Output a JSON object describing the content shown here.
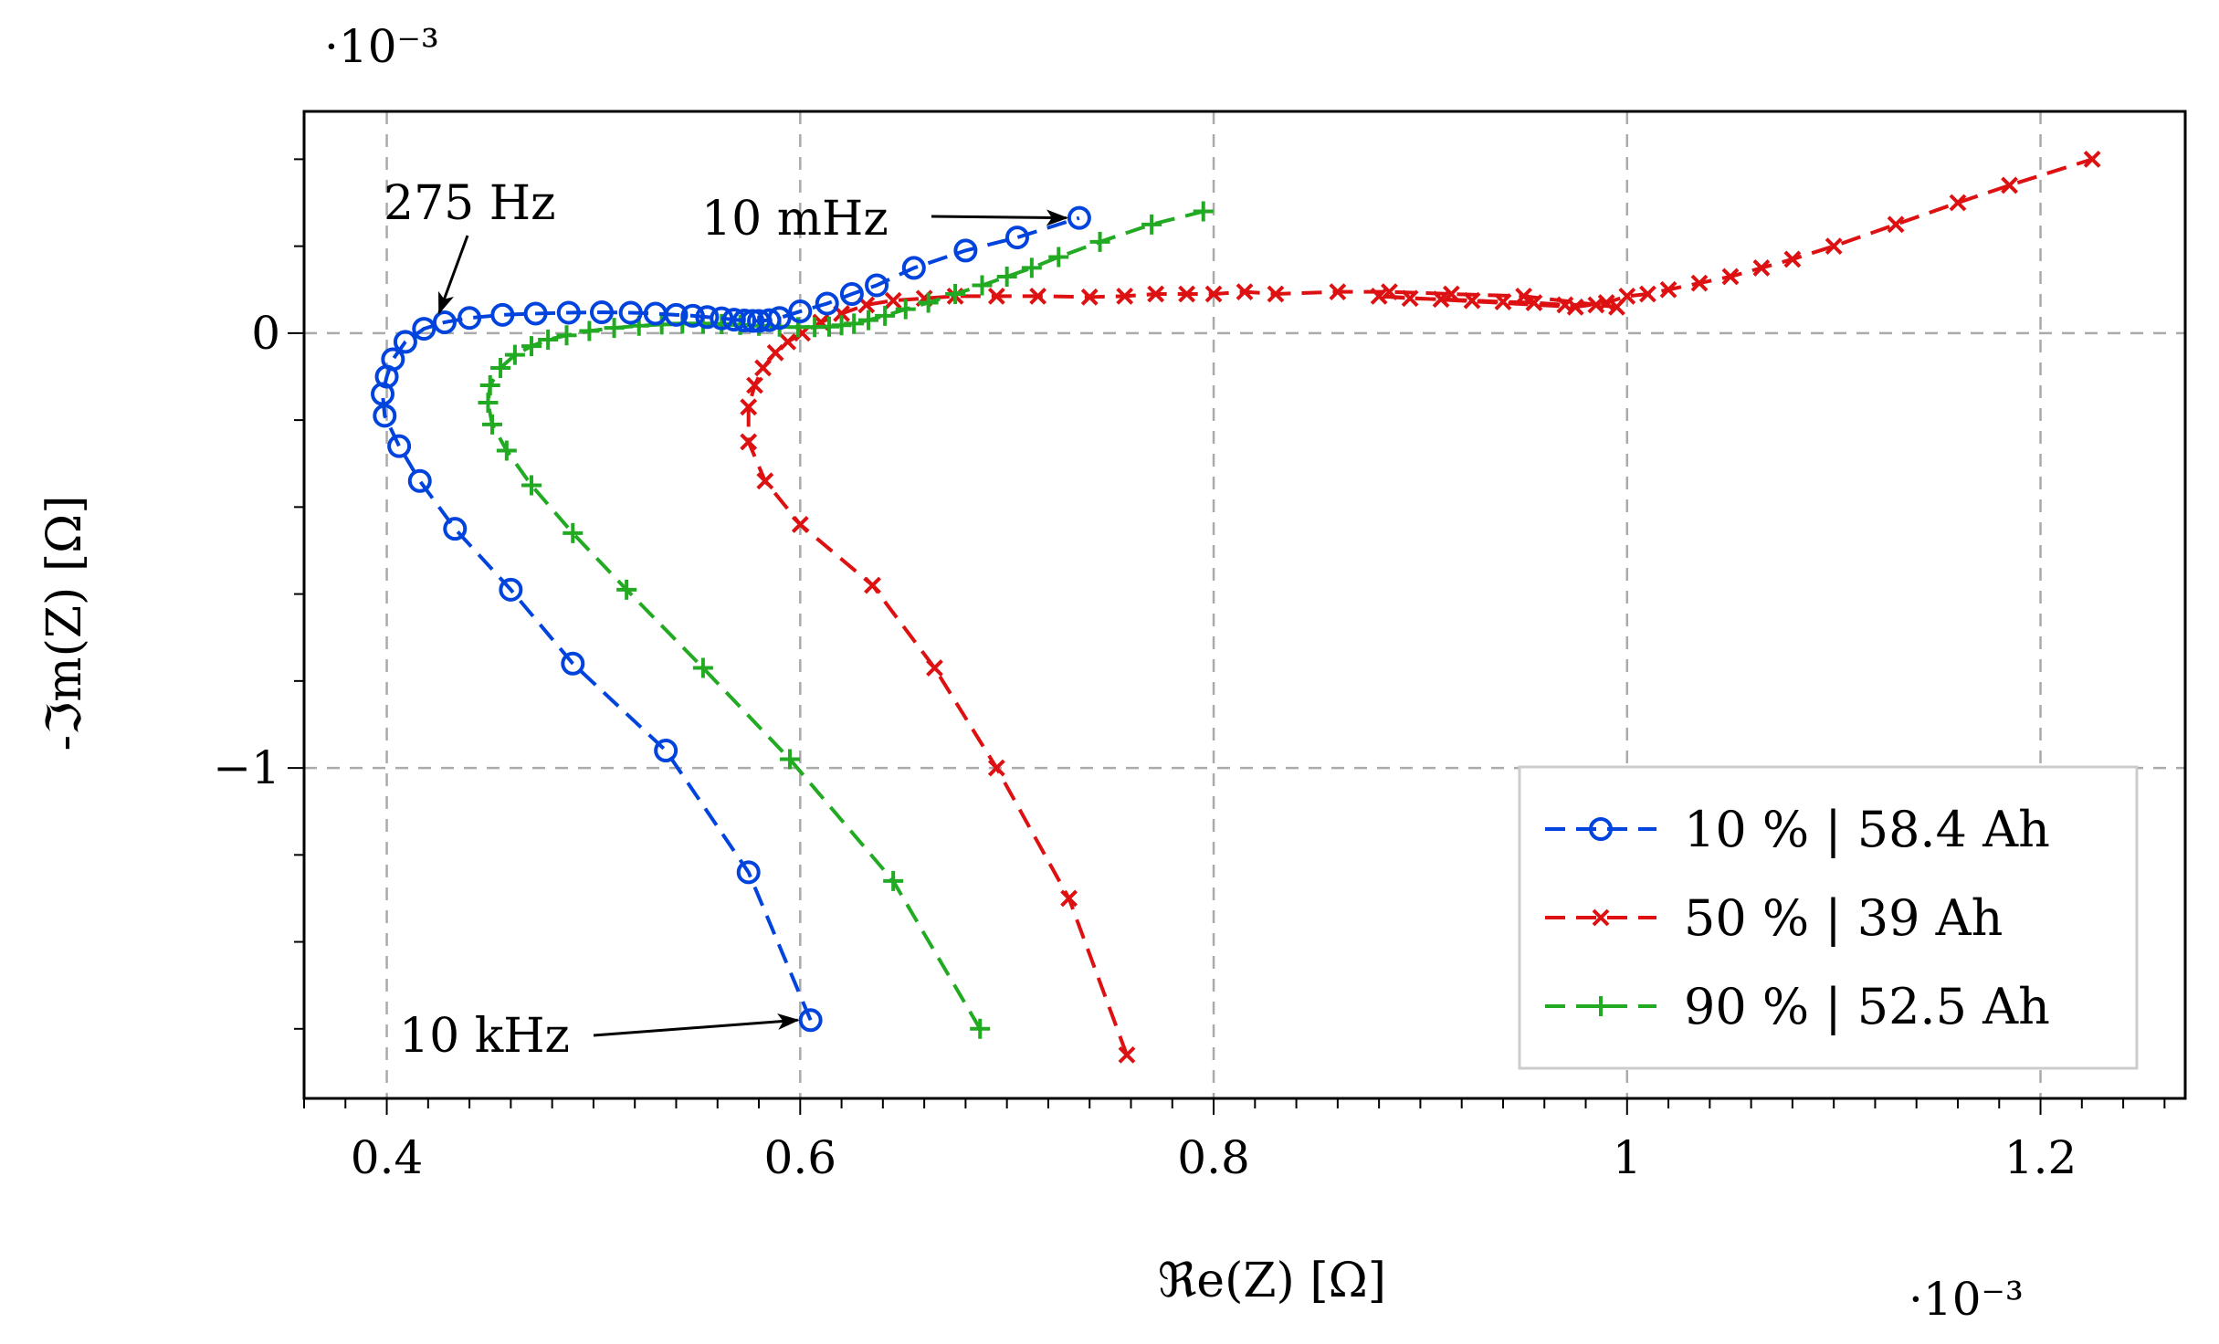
{
  "chart_data": {
    "type": "scatter",
    "title": "",
    "xlabel": "ℜe(Z)  [Ω]",
    "ylabel": "-ℑm(Z)  [Ω]",
    "x_multiplier": "·10⁻³",
    "y_multiplier": "·10⁻³",
    "xlim": [
      0.36,
      1.27
    ],
    "ylim": [
      -1.76,
      0.51
    ],
    "xticks": [
      0.4,
      0.6,
      0.8,
      1.0,
      1.2
    ],
    "xtick_labels": [
      "0.4",
      "0.6",
      "0.8",
      "1",
      "1.2"
    ],
    "yticks": [
      0,
      -1
    ],
    "ytick_labels": [
      "0",
      "−1"
    ],
    "grid": true,
    "legend_position": "bottom-right",
    "annotations": [
      {
        "text": "275 Hz",
        "at": [
          0.428,
          0.03
        ]
      },
      {
        "text": "10 mHz",
        "at": [
          0.735,
          0.265
        ]
      },
      {
        "text": "10 kHz",
        "at": [
          0.605,
          -1.58
        ]
      }
    ],
    "series": [
      {
        "name": "10 % | 58.4 Ah",
        "color": "#0044dd",
        "marker": "circle",
        "x": [
          0.605,
          0.575,
          0.535,
          0.49,
          0.46,
          0.433,
          0.416,
          0.406,
          0.399,
          0.398,
          0.4,
          0.403,
          0.409,
          0.418,
          0.428,
          0.44,
          0.456,
          0.472,
          0.488,
          0.504,
          0.518,
          0.53,
          0.54,
          0.548,
          0.555,
          0.562,
          0.568,
          0.573,
          0.577,
          0.58,
          0.585,
          0.59,
          0.6,
          0.613,
          0.625,
          0.637,
          0.655,
          0.68,
          0.705,
          0.735
        ],
        "y": [
          -1.58,
          -1.24,
          -0.96,
          -0.76,
          -0.59,
          -0.45,
          -0.34,
          -0.26,
          -0.19,
          -0.14,
          -0.1,
          -0.06,
          -0.02,
          0.01,
          0.025,
          0.035,
          0.042,
          0.045,
          0.047,
          0.048,
          0.047,
          0.045,
          0.042,
          0.04,
          0.037,
          0.034,
          0.031,
          0.029,
          0.028,
          0.028,
          0.03,
          0.035,
          0.05,
          0.068,
          0.09,
          0.11,
          0.15,
          0.19,
          0.22,
          0.265
        ]
      },
      {
        "name": "50 % | 39 Ah",
        "color": "#dd1111",
        "marker": "x",
        "x": [
          0.758,
          0.73,
          0.695,
          0.665,
          0.635,
          0.6,
          0.583,
          0.575,
          0.575,
          0.578,
          0.582,
          0.588,
          0.594,
          0.601,
          0.61,
          0.62,
          0.632,
          0.645,
          0.66,
          0.675,
          0.695,
          0.715,
          0.74,
          0.757,
          0.772,
          0.787,
          0.8,
          0.815,
          0.83,
          0.86,
          0.885,
          0.915,
          0.95,
          0.995,
          0.985,
          0.97,
          0.955,
          0.94,
          0.925,
          0.91,
          0.895,
          0.88,
          0.975,
          0.99,
          1.0,
          1.01,
          1.02,
          1.035,
          1.05,
          1.065,
          1.08,
          1.1,
          1.13,
          1.16,
          1.185,
          1.225
        ],
        "y": [
          -1.66,
          -1.3,
          -1.0,
          -0.77,
          -0.58,
          -0.44,
          -0.34,
          -0.25,
          -0.17,
          -0.12,
          -0.08,
          -0.045,
          -0.02,
          0.0,
          0.025,
          0.045,
          0.065,
          0.075,
          0.08,
          0.085,
          0.085,
          0.085,
          0.083,
          0.085,
          0.09,
          0.09,
          0.09,
          0.095,
          0.09,
          0.095,
          0.095,
          0.09,
          0.085,
          0.06,
          0.065,
          0.065,
          0.07,
          0.072,
          0.075,
          0.078,
          0.08,
          0.085,
          0.06,
          0.07,
          0.085,
          0.09,
          0.1,
          0.115,
          0.13,
          0.15,
          0.17,
          0.2,
          0.25,
          0.3,
          0.34,
          0.4
        ]
      },
      {
        "name": "90 % | 52.5 Ah",
        "color": "#22aa22",
        "marker": "plus",
        "x": [
          0.687,
          0.645,
          0.595,
          0.553,
          0.516,
          0.49,
          0.47,
          0.458,
          0.451,
          0.449,
          0.45,
          0.455,
          0.462,
          0.47,
          0.478,
          0.487,
          0.498,
          0.51,
          0.522,
          0.533,
          0.543,
          0.553,
          0.562,
          0.571,
          0.58,
          0.59,
          0.599,
          0.607,
          0.614,
          0.62,
          0.626,
          0.633,
          0.641,
          0.651,
          0.662,
          0.675,
          0.688,
          0.7,
          0.712,
          0.725,
          0.745,
          0.77,
          0.795
        ],
        "y": [
          -1.6,
          -1.26,
          -0.98,
          -0.77,
          -0.59,
          -0.46,
          -0.35,
          -0.27,
          -0.21,
          -0.16,
          -0.12,
          -0.08,
          -0.05,
          -0.03,
          -0.015,
          -0.005,
          0.005,
          0.012,
          0.017,
          0.02,
          0.022,
          0.022,
          0.021,
          0.019,
          0.017,
          0.015,
          0.014,
          0.014,
          0.015,
          0.018,
          0.022,
          0.03,
          0.04,
          0.055,
          0.07,
          0.09,
          0.11,
          0.13,
          0.15,
          0.175,
          0.21,
          0.25,
          0.28
        ]
      }
    ]
  }
}
